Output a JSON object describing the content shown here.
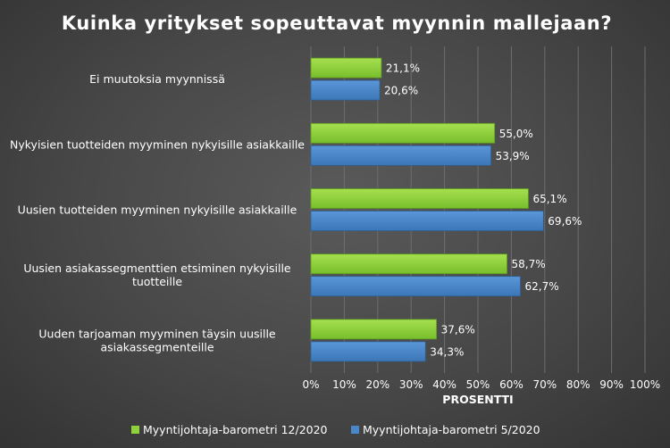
{
  "chart_data": {
    "type": "bar",
    "orientation": "horizontal",
    "title": "Kuinka yritykset sopeuttavat myynnin mallejaan?",
    "xlabel": "PROSENTTI",
    "ylabel": "",
    "xlim": [
      0,
      100
    ],
    "x_ticks": [
      "0%",
      "10%",
      "20%",
      "30%",
      "40%",
      "50%",
      "60%",
      "70%",
      "80%",
      "90%",
      "100%"
    ],
    "grid": true,
    "legend_position": "bottom",
    "categories": [
      [
        "Ei muutoksia myynnissä"
      ],
      [
        "Nykyisien tuotteiden myyminen nykyisille asiakkaille"
      ],
      [
        "Uusien tuotteiden myyminen nykyisille asiakkaille"
      ],
      [
        "Uusien asiakassegmenttien etsiminen nykyisille",
        "tuotteille"
      ],
      [
        "Uuden tarjoaman myyminen täysin uusille",
        "asiakassegmenteille"
      ]
    ],
    "series": [
      {
        "name": "Myyntijohtaja-barometri 12/2020",
        "color": "#8fd13a",
        "values": [
          21.1,
          55.0,
          65.1,
          58.7,
          37.6
        ],
        "labels": [
          "21,1%",
          "55,0%",
          "65,1%",
          "58,7%",
          "37,6%"
        ]
      },
      {
        "name": "Myyntijohtaja-barometri 5/2020",
        "color": "#4a87c9",
        "values": [
          20.6,
          53.9,
          69.6,
          62.7,
          34.3
        ],
        "labels": [
          "20,6%",
          "53,9%",
          "69,6%",
          "62,7%",
          "34,3%"
        ]
      }
    ]
  }
}
